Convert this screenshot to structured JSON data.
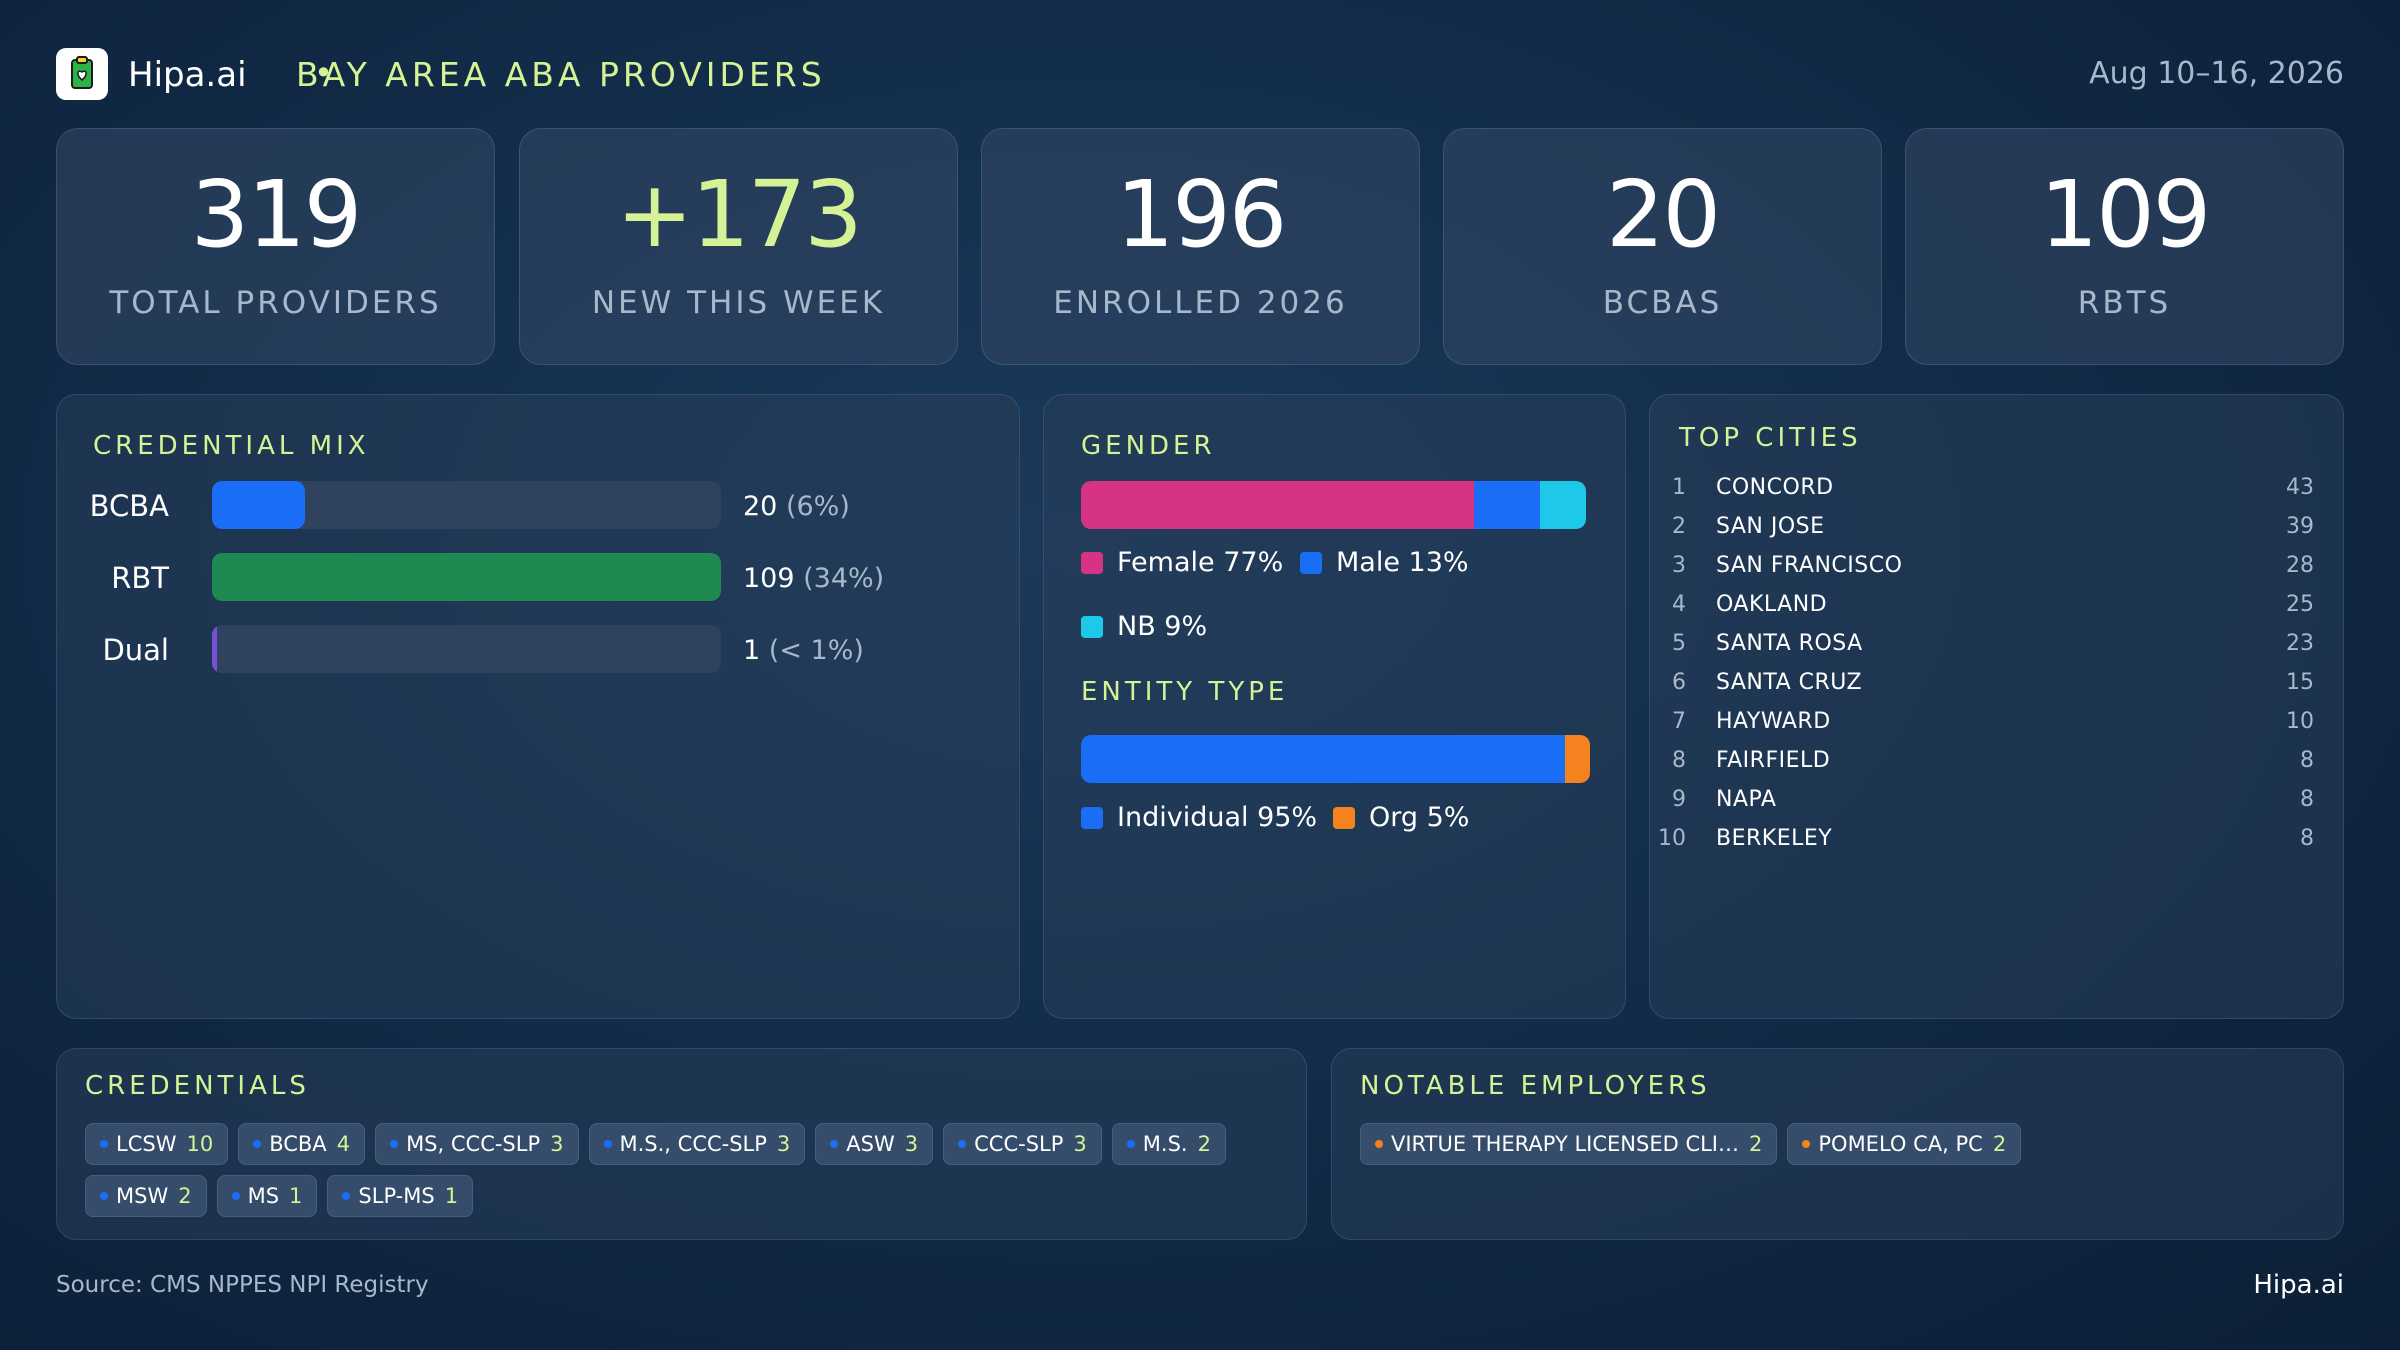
{
  "header": {
    "brand": "Hipa.ai",
    "separator": "•",
    "title": "BAY AREA ABA PROVIDERS",
    "date_range": "Aug 10–16, 2026",
    "logo_icon": "clipboard-heart-icon"
  },
  "kpis": [
    {
      "value": "319",
      "label": "TOTAL  PROVIDERS"
    },
    {
      "value": "+173",
      "label": "NEW THIS WEEK"
    },
    {
      "value": "196",
      "label": "ENROLLED 2026"
    },
    {
      "value": "20",
      "label": "BCBAS"
    },
    {
      "value": "109",
      "label": "RBTS"
    }
  ],
  "credential_mix": {
    "title": "CREDENTIAL  MIX",
    "rows": [
      {
        "name": "BCBA",
        "count": "20",
        "pct": "(6%)",
        "share": 0.183,
        "color": "#1a6ef5"
      },
      {
        "name": "RBT",
        "count": "109",
        "pct": "(34%)",
        "share": 1.0,
        "color": "#1e8a52"
      },
      {
        "name": "Dual",
        "count": "1",
        "pct": "(< 1%)",
        "share": 0.009,
        "color": "#7a4fd8"
      }
    ]
  },
  "gender": {
    "title": "GENDER",
    "segments": [
      {
        "label": "Female 77%",
        "share": 77,
        "color": "#d63384"
      },
      {
        "label": "Male 13%",
        "share": 13,
        "color": "#1a6ef5"
      },
      {
        "label": "NB 9%",
        "share": 9,
        "color": "#1ec8e8"
      }
    ]
  },
  "entity_type": {
    "title": "ENTITY  TYPE",
    "segments": [
      {
        "label": "Individual 95%",
        "share": 95,
        "color": "#1a6ef5"
      },
      {
        "label": "Org 5%",
        "share": 5,
        "color": "#f4821f"
      }
    ]
  },
  "top_cities": {
    "title": "TOP CITIES",
    "rows": [
      {
        "rank": "1",
        "name": "CONCORD",
        "count": "43"
      },
      {
        "rank": "2",
        "name": "SAN JOSE",
        "count": "39"
      },
      {
        "rank": "3",
        "name": "SAN FRANCISCO",
        "count": "28"
      },
      {
        "rank": "4",
        "name": "OAKLAND",
        "count": "25"
      },
      {
        "rank": "5",
        "name": "SANTA ROSA",
        "count": "23"
      },
      {
        "rank": "6",
        "name": "SANTA CRUZ",
        "count": "15"
      },
      {
        "rank": "7",
        "name": "HAYWARD",
        "count": "10"
      },
      {
        "rank": "8",
        "name": "FAIRFIELD",
        "count": "8"
      },
      {
        "rank": "9",
        "name": "NAPA",
        "count": "8"
      },
      {
        "rank": "10",
        "name": "BERKELEY",
        "count": "8"
      }
    ]
  },
  "credentials": {
    "title": "CREDENTIALS",
    "dot_color": "#1a6ef5",
    "chips": [
      {
        "label": "LCSW",
        "count": "10"
      },
      {
        "label": "BCBA",
        "count": "4"
      },
      {
        "label": "MS, CCC-SLP",
        "count": "3"
      },
      {
        "label": "M.S., CCC-SLP",
        "count": "3"
      },
      {
        "label": "ASW",
        "count": "3"
      },
      {
        "label": "CCC-SLP",
        "count": "3"
      },
      {
        "label": "M.S.",
        "count": "2"
      },
      {
        "label": "MSW",
        "count": "2"
      },
      {
        "label": "MS",
        "count": "1"
      },
      {
        "label": "SLP-MS",
        "count": "1"
      }
    ]
  },
  "employers": {
    "title": "NOTABLE  EMPLOYERS",
    "dot_color": "#f4821f",
    "chips": [
      {
        "label": "VIRTUE THERAPY LICENSED CLI…",
        "count": "2"
      },
      {
        "label": "POMELO CA, PC",
        "count": "2"
      }
    ]
  },
  "footer": {
    "source": "Source: CMS NPPES NPI Registry",
    "brand": "Hipa.ai"
  }
}
